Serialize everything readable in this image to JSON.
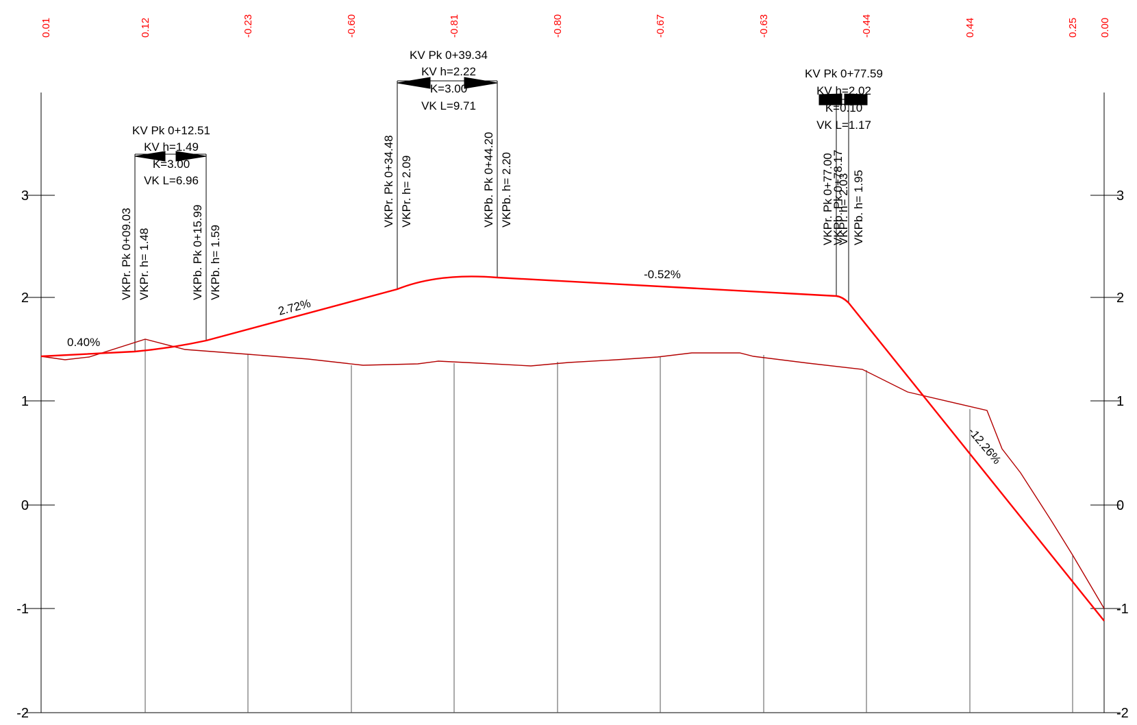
{
  "colors": {
    "design": "#ff0000",
    "ground": "#b30000",
    "frame": "#000000",
    "stations": "#555555",
    "diff": "#ff0000"
  },
  "elevation_diffs": [
    "0.01",
    "0.12",
    "-0.23",
    "-0.60",
    "-0.81",
    "-0.80",
    "-0.67",
    "-0.63",
    "-0.44",
    "0.44",
    "0.25",
    "0.00"
  ],
  "axis_ticks": [
    "3",
    "2",
    "1",
    "0",
    "-1",
    "-2"
  ],
  "grades": [
    "0.40%",
    "2.72%",
    "-0.52%",
    "-12.26%"
  ],
  "curves": [
    {
      "top": [
        "KV Pk 0+12.51",
        "KV h=1.49",
        "K=3.00",
        "VK L=6.96"
      ],
      "start": [
        "VKPr. Pk 0+09.03",
        "VKPr. h= 1.48"
      ],
      "end": [
        "VKPb. Pk 0+15.99",
        "VKPb. h= 1.59"
      ]
    },
    {
      "top": [
        "KV Pk 0+39.34",
        "KV h=2.22",
        "K=3.00",
        "VK L=9.71"
      ],
      "start": [
        "VKPr. Pk 0+34.48",
        "VKPr. h= 2.09"
      ],
      "end": [
        "VKPb. Pk 0+44.20",
        "VKPb. h= 2.20"
      ]
    },
    {
      "top": [
        "KV Pk 0+77.59",
        "KV h=2.02",
        "K=0.10",
        "VK L=1.17"
      ],
      "start": [
        "VKPr. Pk 0+77.00",
        "VKPr. h= 2.03"
      ],
      "end": [
        "VKPb. Pk 0+78.17",
        "VKPb. h= 1.95"
      ]
    }
  ]
}
